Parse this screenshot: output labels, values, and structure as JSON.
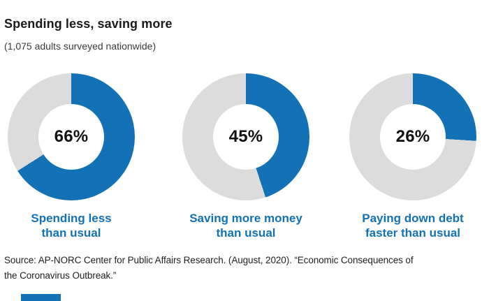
{
  "header": {
    "title": "Spending less, saving more",
    "subtitle": "(1,075 adults surveyed nationwide)"
  },
  "chart_data": {
    "type": "pie",
    "variant": "donut",
    "unit": "%",
    "start_angle_deg": 0,
    "direction": "clockwise",
    "colors": {
      "accent": "#1272b5",
      "track": "#dcdcdc"
    },
    "series": [
      {
        "label": "Spending less than usual",
        "label_lines": [
          "Spending less",
          "than usual"
        ],
        "value": 66,
        "value_label": "66%"
      },
      {
        "label": "Saving more money than usual",
        "label_lines": [
          "Saving more money",
          "than usual"
        ],
        "value": 45,
        "value_label": "45%"
      },
      {
        "label": "Paying down debt faster than usual",
        "label_lines": [
          "Paying down debt",
          "faster than usual"
        ],
        "value": 26,
        "value_label": "26%"
      }
    ]
  },
  "footer": {
    "source_lines": [
      "Source: AP-NORC Center for Public Affairs Research. (August, 2020). “Economic Consequences of",
      "the Coronavirus Outbreak.”"
    ]
  }
}
